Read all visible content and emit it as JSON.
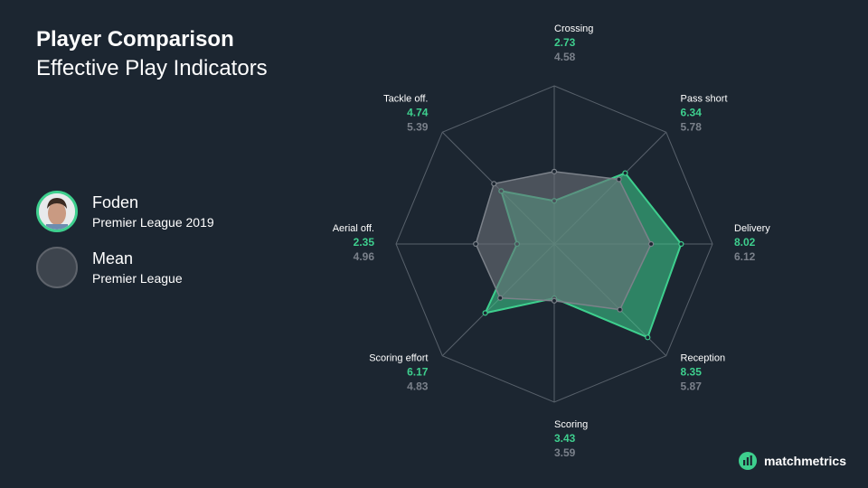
{
  "header": {
    "title": "Player Comparison",
    "subtitle": "Effective Play Indicators"
  },
  "legend": {
    "items": [
      {
        "name": "Foden",
        "sub": "Premier League 2019",
        "color": "#3ecf8e"
      },
      {
        "name": "Mean",
        "sub": "Premier League",
        "color": "#6b7078"
      }
    ]
  },
  "brand": {
    "name": "matchmetrics"
  },
  "chart_data": {
    "type": "radar",
    "axis_max": 10,
    "categories": [
      "Crossing",
      "Pass short",
      "Delivery",
      "Reception",
      "Scoring",
      "Scoring effort",
      "Aerial off.",
      "Tackle off."
    ],
    "series": [
      {
        "name": "Foden",
        "color": "#3ecf8e",
        "values": [
          2.73,
          6.34,
          8.02,
          8.35,
          3.43,
          6.17,
          2.35,
          4.74
        ]
      },
      {
        "name": "Mean",
        "color": "#6b7078",
        "values": [
          4.58,
          5.78,
          6.12,
          5.87,
          3.59,
          4.83,
          4.96,
          5.39
        ]
      }
    ],
    "grid": true,
    "legend": "left"
  }
}
